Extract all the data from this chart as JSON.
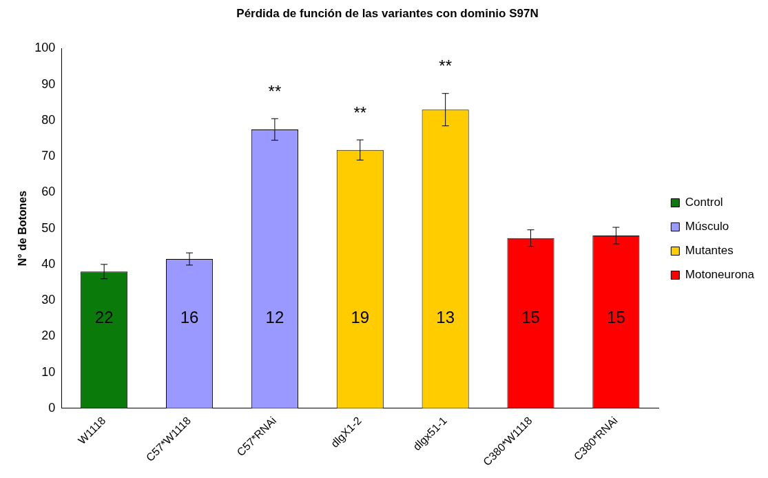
{
  "chart_data": {
    "type": "bar",
    "title": "Pérdida de función de las variantes con dominio S97N",
    "ylabel": "N° de Botones",
    "categories": [
      "W1118",
      "C57*W1118",
      "C57*RNAi",
      "dlgX1-2",
      "dlgx51-1",
      "C380*W1118",
      "C380*RNAi"
    ],
    "series": [
      {
        "name": "Control",
        "color": "#0a7a0a",
        "values": [
          38,
          null,
          null,
          null,
          null,
          null,
          null
        ],
        "errors": [
          2,
          null,
          null,
          null,
          null,
          null,
          null
        ]
      },
      {
        "name": "Músculo",
        "color": "#9999ff",
        "values": [
          null,
          41.5,
          77.5,
          null,
          null,
          null,
          null
        ],
        "errors": [
          null,
          1.7,
          3,
          null,
          null,
          null,
          null
        ]
      },
      {
        "name": "Mutantes",
        "color": "#ffcc00",
        "values": [
          null,
          null,
          null,
          71.8,
          83,
          null,
          null
        ],
        "errors": [
          null,
          null,
          null,
          2.8,
          4.5,
          null,
          null
        ]
      },
      {
        "name": "Motoneurona",
        "color": "#ff0000",
        "values": [
          null,
          null,
          null,
          null,
          null,
          47.3,
          48
        ],
        "errors": [
          null,
          null,
          null,
          null,
          null,
          2.3,
          2.3
        ]
      }
    ],
    "ylim": [
      0,
      100
    ],
    "yticks": [
      0,
      10,
      20,
      30,
      40,
      50,
      60,
      70,
      80,
      90,
      100
    ],
    "grid": false,
    "legend": "right",
    "annotations": [
      "22",
      "16",
      "12",
      "19",
      "13",
      "15",
      "15",
      "**",
      "**",
      "**"
    ]
  }
}
